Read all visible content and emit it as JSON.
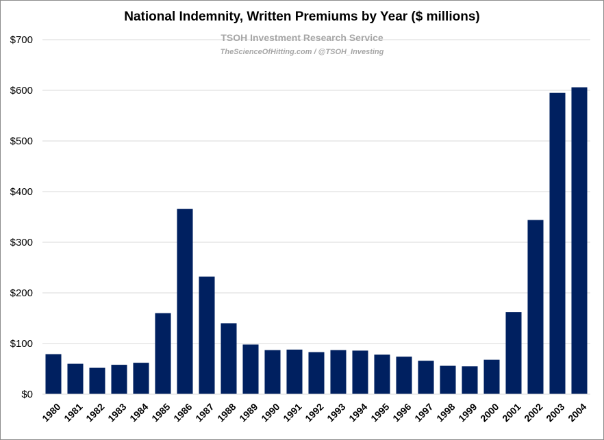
{
  "chart_data": {
    "type": "bar",
    "title": "National Indemnity, Written Premiums by Year ($ millions)",
    "subtitle": "TSOH Investment Research Service",
    "subtitle2": "TheScienceOfHitting.com / @TSOH_Investing",
    "xlabel": "",
    "ylabel": "",
    "ylim": [
      0,
      700
    ],
    "yticks": [
      0,
      100,
      200,
      300,
      400,
      500,
      600,
      700
    ],
    "ytick_labels": [
      "$0",
      "$100",
      "$200",
      "$300",
      "$400",
      "$500",
      "$600",
      "$700"
    ],
    "grid": true,
    "bar_color": "#002060",
    "categories": [
      "1980",
      "1981",
      "1982",
      "1983",
      "1984",
      "1985",
      "1986",
      "1987",
      "1988",
      "1989",
      "1990",
      "1991",
      "1992",
      "1993",
      "1994",
      "1995",
      "1996",
      "1997",
      "1998",
      "1999",
      "2000",
      "2001",
      "2002",
      "2003",
      "2004"
    ],
    "values": [
      79,
      60,
      52,
      58,
      62,
      160,
      366,
      232,
      140,
      98,
      87,
      88,
      83,
      87,
      86,
      78,
      74,
      66,
      56,
      55,
      68,
      162,
      344,
      595,
      606
    ]
  }
}
